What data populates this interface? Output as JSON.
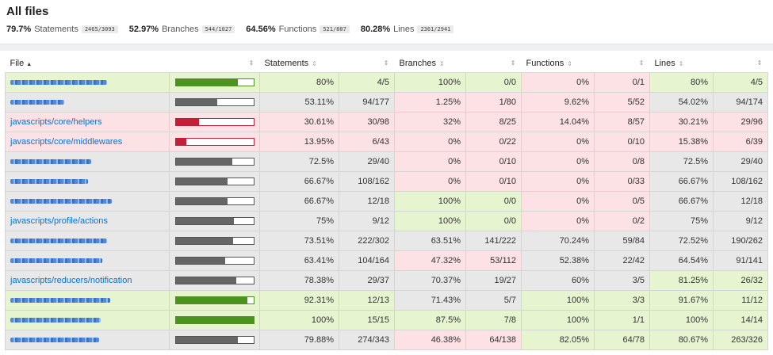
{
  "page": {
    "title": "All files",
    "summary": [
      {
        "pct": "79.7%",
        "label": "Statements",
        "fraction": "2465/3093"
      },
      {
        "pct": "52.97%",
        "label": "Branches",
        "fraction": "544/1027"
      },
      {
        "pct": "64.56%",
        "label": "Functions",
        "fraction": "521/807"
      },
      {
        "pct": "80.28%",
        "label": "Lines",
        "fraction": "2361/2941"
      }
    ]
  },
  "table": {
    "headers": {
      "file": "File",
      "file_sort_arrow": "▲",
      "statements": "Statements",
      "branches": "Branches",
      "functions": "Functions",
      "lines": "Lines",
      "sort_glyph": "⇕"
    },
    "rows": [
      {
        "file": "",
        "blurred": true,
        "level": "high",
        "stmt_pct": "80%",
        "stmt": "4/5",
        "br_pct": "100%",
        "br": "0/0",
        "fn_pct": "0%",
        "fn": "0/1",
        "ln_pct": "80%",
        "ln": "4/5",
        "bar": 0.8,
        "lv": [
          "high",
          "high",
          "high",
          "high",
          "low",
          "low",
          "high",
          "high"
        ]
      },
      {
        "file": "",
        "blurred": true,
        "level": "medium",
        "stmt_pct": "53.11%",
        "stmt": "94/177",
        "br_pct": "1.25%",
        "br": "1/80",
        "fn_pct": "9.62%",
        "fn": "5/52",
        "ln_pct": "54.02%",
        "ln": "94/174",
        "bar": 0.5311,
        "lv": [
          "medium",
          "medium",
          "low",
          "low",
          "low",
          "low",
          "medium",
          "medium"
        ]
      },
      {
        "file": "javascripts/core/helpers",
        "blurred": false,
        "level": "low",
        "stmt_pct": "30.61%",
        "stmt": "30/98",
        "br_pct": "32%",
        "br": "8/25",
        "fn_pct": "14.04%",
        "fn": "8/57",
        "ln_pct": "30.21%",
        "ln": "29/96",
        "bar": 0.3061,
        "lv": [
          "low",
          "low",
          "low",
          "low",
          "low",
          "low",
          "low",
          "low"
        ]
      },
      {
        "file": "javascripts/core/middlewares",
        "blurred": false,
        "level": "low",
        "stmt_pct": "13.95%",
        "stmt": "6/43",
        "br_pct": "0%",
        "br": "0/22",
        "fn_pct": "0%",
        "fn": "0/10",
        "ln_pct": "15.38%",
        "ln": "6/39",
        "bar": 0.1395,
        "lv": [
          "low",
          "low",
          "low",
          "low",
          "low",
          "low",
          "low",
          "low"
        ]
      },
      {
        "file": "",
        "blurred": true,
        "level": "medium",
        "stmt_pct": "72.5%",
        "stmt": "29/40",
        "br_pct": "0%",
        "br": "0/10",
        "fn_pct": "0%",
        "fn": "0/8",
        "ln_pct": "72.5%",
        "ln": "29/40",
        "bar": 0.725,
        "lv": [
          "medium",
          "medium",
          "low",
          "low",
          "low",
          "low",
          "medium",
          "medium"
        ]
      },
      {
        "file": "",
        "blurred": true,
        "level": "medium",
        "stmt_pct": "66.67%",
        "stmt": "108/162",
        "br_pct": "0%",
        "br": "0/10",
        "fn_pct": "0%",
        "fn": "0/33",
        "ln_pct": "66.67%",
        "ln": "108/162",
        "bar": 0.6667,
        "lv": [
          "medium",
          "medium",
          "low",
          "low",
          "low",
          "low",
          "medium",
          "medium"
        ]
      },
      {
        "file": "",
        "blurred": true,
        "level": "medium",
        "stmt_pct": "66.67%",
        "stmt": "12/18",
        "br_pct": "100%",
        "br": "0/0",
        "fn_pct": "0%",
        "fn": "0/5",
        "ln_pct": "66.67%",
        "ln": "12/18",
        "bar": 0.6667,
        "lv": [
          "medium",
          "medium",
          "high",
          "high",
          "low",
          "low",
          "medium",
          "medium"
        ]
      },
      {
        "file": "javascripts/profile/actions",
        "blurred": false,
        "level": "medium",
        "stmt_pct": "75%",
        "stmt": "9/12",
        "br_pct": "100%",
        "br": "0/0",
        "fn_pct": "0%",
        "fn": "0/2",
        "ln_pct": "75%",
        "ln": "9/12",
        "bar": 0.75,
        "lv": [
          "medium",
          "medium",
          "high",
          "high",
          "low",
          "low",
          "medium",
          "medium"
        ]
      },
      {
        "file": "",
        "blurred": true,
        "level": "medium",
        "stmt_pct": "73.51%",
        "stmt": "222/302",
        "br_pct": "63.51%",
        "br": "141/222",
        "fn_pct": "70.24%",
        "fn": "59/84",
        "ln_pct": "72.52%",
        "ln": "190/262",
        "bar": 0.7351,
        "lv": [
          "medium",
          "medium",
          "medium",
          "medium",
          "medium",
          "medium",
          "medium",
          "medium"
        ]
      },
      {
        "file": "",
        "blurred": true,
        "level": "medium",
        "stmt_pct": "63.41%",
        "stmt": "104/164",
        "br_pct": "47.32%",
        "br": "53/112",
        "fn_pct": "52.38%",
        "fn": "22/42",
        "ln_pct": "64.54%",
        "ln": "91/141",
        "bar": 0.6341,
        "lv": [
          "medium",
          "medium",
          "low",
          "low",
          "medium",
          "medium",
          "medium",
          "medium"
        ]
      },
      {
        "file": "javascripts/reducers/notification",
        "blurred": false,
        "level": "medium",
        "stmt_pct": "78.38%",
        "stmt": "29/37",
        "br_pct": "70.37%",
        "br": "19/27",
        "fn_pct": "60%",
        "fn": "3/5",
        "ln_pct": "81.25%",
        "ln": "26/32",
        "bar": 0.7838,
        "lv": [
          "medium",
          "medium",
          "medium",
          "medium",
          "medium",
          "medium",
          "high",
          "high"
        ]
      },
      {
        "file": "",
        "blurred": true,
        "level": "high",
        "stmt_pct": "92.31%",
        "stmt": "12/13",
        "br_pct": "71.43%",
        "br": "5/7",
        "fn_pct": "100%",
        "fn": "3/3",
        "ln_pct": "91.67%",
        "ln": "11/12",
        "bar": 0.9231,
        "lv": [
          "high",
          "high",
          "medium",
          "medium",
          "high",
          "high",
          "high",
          "high"
        ]
      },
      {
        "file": "",
        "blurred": true,
        "level": "high",
        "stmt_pct": "100%",
        "stmt": "15/15",
        "br_pct": "87.5%",
        "br": "7/8",
        "fn_pct": "100%",
        "fn": "1/1",
        "ln_pct": "100%",
        "ln": "14/14",
        "bar": 1.0,
        "lv": [
          "high",
          "high",
          "high",
          "high",
          "high",
          "high",
          "high",
          "high"
        ]
      },
      {
        "file": "",
        "blurred": true,
        "level": "medium",
        "stmt_pct": "79.88%",
        "stmt": "274/343",
        "br_pct": "46.38%",
        "br": "64/138",
        "fn_pct": "82.05%",
        "fn": "64/78",
        "ln_pct": "80.67%",
        "ln": "263/326",
        "bar": 0.7988,
        "lv": [
          "medium",
          "medium",
          "low",
          "low",
          "high",
          "high",
          "high",
          "high"
        ]
      }
    ]
  }
}
